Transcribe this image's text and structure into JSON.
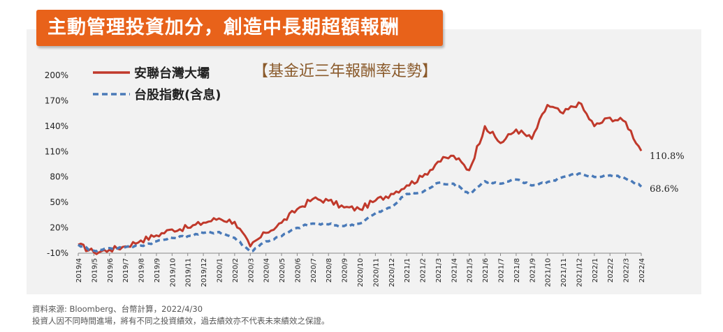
{
  "banner": {
    "title": "主動管理投資加分，創造中長期超額報酬"
  },
  "subtitle": "【基金近三年報酬率走勢】",
  "footer": {
    "source": "資料來源: Bloomberg、台幣計算，2022/4/30",
    "disclaimer": "投資人因不同時間進場，將有不同之投資績效，過去績效亦不代表未來績效之保證。"
  },
  "chart_data": {
    "type": "line",
    "title": "",
    "xlabel": "",
    "ylabel": "",
    "ylim": [
      -10,
      200
    ],
    "yticks": [
      "200%",
      "170%",
      "140%",
      "110%",
      "80%",
      "50%",
      "20%",
      "-10%"
    ],
    "ytick_values": [
      200,
      170,
      140,
      110,
      80,
      50,
      20,
      -10
    ],
    "categories": [
      "2019/4",
      "2019/5",
      "2019/6",
      "2019/7",
      "2019/8",
      "2019/9",
      "2019/10",
      "2019/11",
      "2019/12",
      "2020/1",
      "2020/2",
      "2020/3",
      "2020/4",
      "2020/5",
      "2020/6",
      "2020/7",
      "2020/8",
      "2020/9",
      "2020/10",
      "2020/11",
      "2020/12",
      "2021/1",
      "2021/2",
      "2021/3",
      "2021/4",
      "2021/5",
      "2021/6",
      "2021/7",
      "2021/8",
      "2021/9",
      "2021/10",
      "2021/11",
      "2021/12",
      "2022/1",
      "2022/2",
      "2022/3",
      "2022/4"
    ],
    "grid": false,
    "legend_position": "top-left",
    "series": [
      {
        "name": "安聯台灣大壩",
        "color": "#c0392b",
        "style": "solid",
        "end_label": "110.8%",
        "values": [
          0,
          -9,
          -6,
          -2,
          5,
          11,
          18,
          20,
          26,
          31,
          27,
          -2,
          14,
          26,
          42,
          54,
          52,
          44,
          42,
          52,
          60,
          70,
          80,
          98,
          105,
          88,
          140,
          120,
          136,
          125,
          165,
          155,
          168,
          140,
          150,
          145,
          110.8
        ]
      },
      {
        "name": "台股指數(含息)",
        "color": "#4a7ab8",
        "style": "dashed",
        "end_label": "68.6%",
        "values": [
          0,
          -7,
          -4,
          -3,
          -1,
          4,
          8,
          10,
          14,
          15,
          8,
          -8,
          4,
          10,
          20,
          25,
          24,
          22,
          25,
          37,
          44,
          60,
          62,
          73,
          72,
          60,
          75,
          72,
          77,
          70,
          74,
          80,
          84,
          80,
          82,
          78,
          68.6
        ]
      }
    ]
  }
}
